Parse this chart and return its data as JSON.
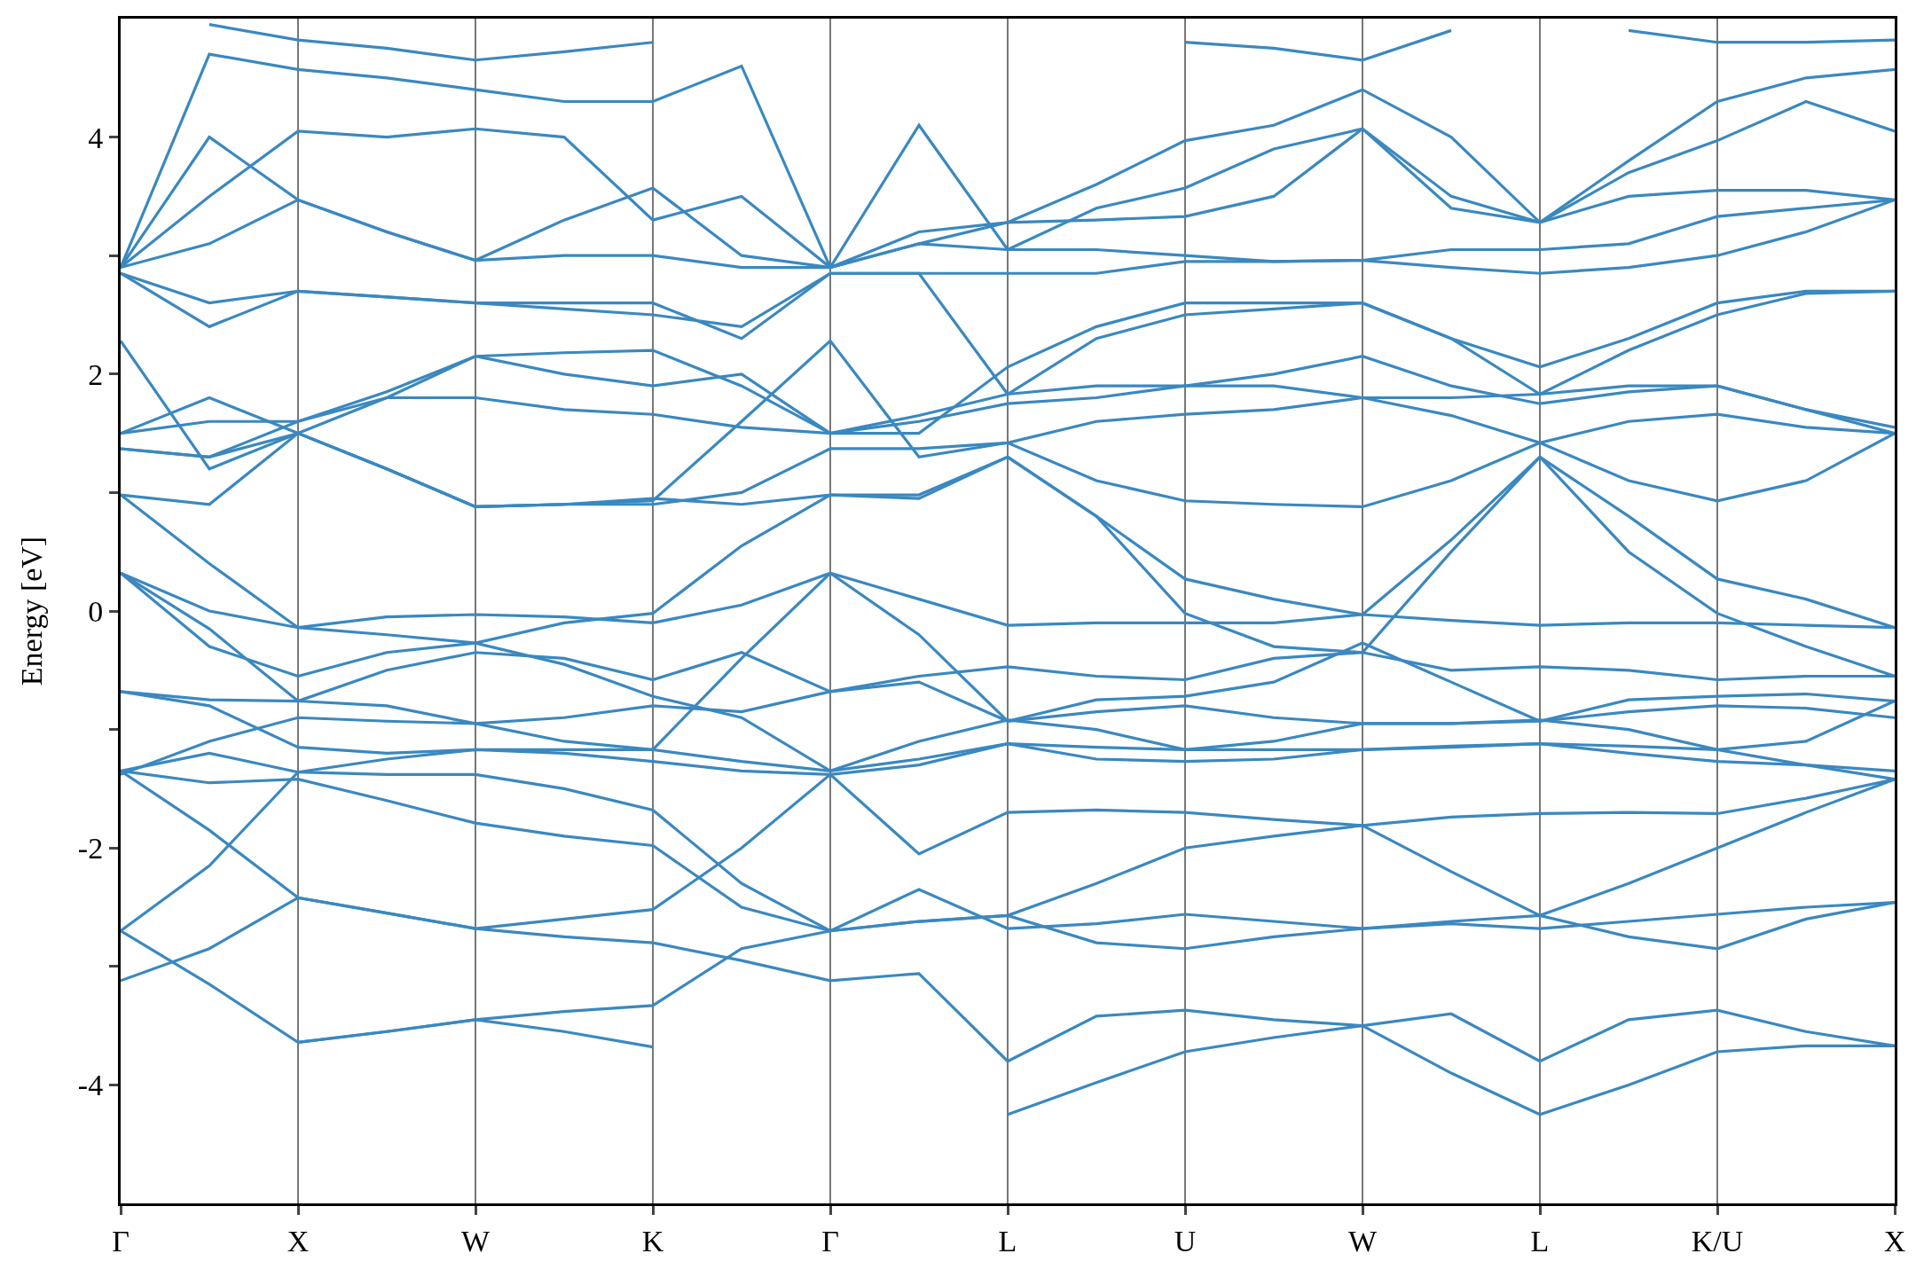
{
  "chart_data": {
    "type": "line",
    "ylabel": "Energy [eV]",
    "color": "#3a88c0",
    "grid": "x",
    "marker": "none",
    "line_style": "solid",
    "categories": [
      "Γ",
      null,
      "X",
      null,
      "W",
      null,
      "K",
      null,
      "Γ",
      null,
      "L",
      null,
      "U",
      null,
      "W",
      null,
      "L",
      null,
      "K/U",
      null,
      "X"
    ],
    "ylim": [
      -5,
      5
    ],
    "yticks": [
      -4,
      {
        "value": -3,
        "label": null
      },
      -2,
      {
        "value": -1,
        "label": null
      },
      0,
      {
        "value": 1,
        "label": null
      },
      2,
      {
        "value": 3,
        "label": null
      },
      4
    ],
    "series": [
      {
        "values": [
          null,
          null,
          -3.64,
          -3.55,
          -3.45,
          -3.55,
          -3.68,
          null,
          null,
          null,
          -4.25,
          -3.98,
          -3.72,
          -3.6,
          -3.5,
          -3.9,
          -4.25,
          -4.0,
          -3.72,
          -3.67,
          -3.67
        ]
      },
      {
        "values": [
          -2.7,
          -3.15,
          -3.64,
          -3.55,
          -3.45,
          -3.38,
          -3.33,
          -2.85,
          -2.7,
          -2.35,
          -2.68,
          -2.64,
          -2.56,
          -2.62,
          -2.68,
          -2.64,
          -2.68,
          -2.62,
          -2.56,
          -2.5,
          -2.46
        ]
      },
      {
        "values": [
          -3.12,
          -2.85,
          -2.42,
          -2.55,
          -2.68,
          -2.75,
          -2.8,
          -2.95,
          -3.12,
          -3.06,
          -3.8,
          -3.42,
          -3.37,
          -3.45,
          -3.5,
          -3.4,
          -3.8,
          -3.45,
          -3.37,
          -3.55,
          -3.67
        ]
      },
      {
        "values": [
          -1.35,
          -1.85,
          -2.42,
          -2.55,
          -2.68,
          -2.6,
          -2.52,
          -2.0,
          -1.38,
          -2.05,
          -1.7,
          -1.68,
          -1.7,
          -1.76,
          -1.81,
          -1.74,
          -1.71,
          -1.7,
          -1.71,
          -1.58,
          -1.42
        ]
      },
      {
        "values": [
          -2.7,
          -2.15,
          -1.36,
          -1.25,
          -1.17,
          -1.17,
          -1.17,
          -1.27,
          -1.35,
          -1.25,
          -1.12,
          -1.15,
          -1.17,
          -1.17,
          -1.17,
          -1.14,
          -1.12,
          -1.14,
          -1.17,
          -1.3,
          -1.42
        ]
      },
      {
        "values": [
          -1.35,
          -1.45,
          -1.42,
          -1.6,
          -1.79,
          -1.9,
          -1.98,
          -2.5,
          -2.7,
          -2.62,
          -2.57,
          -2.8,
          -2.85,
          -2.75,
          -2.68,
          -2.62,
          -2.57,
          -2.75,
          -2.85,
          -2.6,
          -2.46
        ]
      },
      {
        "values": [
          -1.35,
          -1.2,
          -1.36,
          -1.38,
          -1.38,
          -1.5,
          -1.68,
          -2.3,
          -2.7,
          -2.62,
          -2.57,
          -2.3,
          -2.0,
          -1.9,
          -1.81,
          -2.2,
          -2.57,
          -2.3,
          -2.0,
          -1.7,
          -1.42
        ]
      },
      {
        "values": [
          -1.38,
          -1.1,
          -0.9,
          -0.93,
          -0.95,
          -0.9,
          -0.8,
          -0.85,
          -0.68,
          -0.6,
          -0.93,
          -0.85,
          -0.8,
          -0.9,
          -0.95,
          -0.95,
          -0.93,
          -0.85,
          -0.8,
          -0.82,
          -0.9
        ]
      },
      {
        "values": [
          -0.68,
          -0.75,
          -0.76,
          -0.5,
          -0.35,
          -0.4,
          -0.58,
          -0.35,
          -0.68,
          -0.55,
          -0.47,
          -0.55,
          -0.58,
          -0.4,
          -0.35,
          -0.5,
          -0.47,
          -0.5,
          -0.58,
          -0.55,
          -0.55
        ]
      },
      {
        "values": [
          -0.68,
          -0.8,
          -1.15,
          -1.2,
          -1.17,
          -1.2,
          -1.27,
          -1.35,
          -1.38,
          -1.3,
          -1.12,
          -1.25,
          -1.27,
          -1.25,
          -1.17,
          -1.15,
          -1.12,
          -1.2,
          -1.27,
          -1.3,
          -1.35
        ]
      },
      {
        "values": [
          0.32,
          -0.3,
          -0.55,
          -0.35,
          -0.27,
          -0.45,
          -0.72,
          -0.9,
          -1.35,
          -1.1,
          -0.92,
          -1.0,
          -1.17,
          -1.1,
          -0.95,
          -0.95,
          -0.92,
          -1.0,
          -1.17,
          -1.1,
          -0.76
        ]
      },
      {
        "values": [
          0.32,
          -0.15,
          -0.76,
          -0.8,
          -0.95,
          -1.1,
          -1.17,
          -0.4,
          0.32,
          -0.2,
          -0.93,
          -0.75,
          -0.72,
          -0.6,
          -0.27,
          -0.6,
          -0.93,
          -0.75,
          -0.72,
          -0.7,
          -0.76
        ]
      },
      {
        "values": [
          0.32,
          0.0,
          -0.14,
          -0.05,
          -0.03,
          -0.05,
          -0.1,
          0.05,
          0.32,
          0.1,
          -0.12,
          -0.1,
          -0.1,
          -0.1,
          -0.03,
          -0.08,
          -0.12,
          -0.1,
          -0.1,
          -0.12,
          -0.14
        ]
      },
      {
        "values": [
          0.98,
          0.4,
          -0.14,
          -0.2,
          -0.27,
          -0.1,
          -0.02,
          0.55,
          0.98,
          0.98,
          1.3,
          0.8,
          0.27,
          0.1,
          -0.03,
          0.6,
          1.3,
          0.8,
          0.27,
          0.1,
          -0.14
        ]
      },
      {
        "values": [
          0.98,
          0.9,
          1.5,
          1.2,
          0.88,
          0.9,
          0.95,
          0.9,
          0.98,
          0.95,
          1.3,
          0.8,
          -0.02,
          -0.3,
          -0.35,
          0.5,
          1.3,
          0.5,
          -0.02,
          -0.3,
          -0.55
        ]
      },
      {
        "values": [
          2.28,
          1.2,
          1.5,
          1.2,
          0.88,
          0.9,
          0.93,
          1.6,
          2.28,
          1.3,
          1.42,
          1.1,
          0.93,
          0.9,
          0.88,
          1.1,
          1.42,
          1.1,
          0.93,
          1.1,
          1.5
        ]
      },
      {
        "values": [
          1.37,
          1.3,
          1.5,
          1.2,
          0.88,
          0.9,
          0.9,
          1.0,
          1.37,
          1.37,
          1.42,
          1.6,
          1.66,
          1.7,
          1.8,
          1.65,
          1.42,
          1.6,
          1.66,
          1.55,
          1.5
        ]
      },
      {
        "values": [
          1.5,
          1.6,
          1.6,
          1.8,
          1.8,
          1.7,
          1.66,
          1.55,
          1.5,
          1.6,
          1.75,
          1.8,
          1.9,
          2.0,
          2.15,
          1.9,
          1.75,
          1.85,
          1.9,
          1.7,
          1.5
        ]
      },
      {
        "values": [
          1.5,
          1.8,
          1.5,
          1.8,
          2.15,
          2.18,
          2.2,
          1.9,
          1.5,
          1.65,
          1.83,
          1.9,
          1.9,
          1.9,
          1.8,
          1.8,
          1.83,
          1.9,
          1.9,
          1.7,
          1.55
        ]
      },
      {
        "values": [
          1.37,
          1.3,
          1.6,
          1.85,
          2.15,
          2.0,
          1.9,
          2.0,
          1.5,
          1.5,
          2.06,
          2.4,
          2.6,
          2.6,
          2.6,
          2.3,
          2.06,
          2.3,
          2.6,
          2.7,
          2.7
        ]
      },
      {
        "values": [
          2.85,
          2.6,
          2.7,
          2.65,
          2.6,
          2.6,
          2.6,
          2.3,
          2.85,
          2.85,
          1.83,
          2.3,
          2.5,
          2.55,
          2.6,
          2.3,
          1.83,
          2.2,
          2.5,
          2.68,
          2.7
        ]
      },
      {
        "values": [
          2.85,
          2.4,
          2.7,
          2.65,
          2.6,
          2.55,
          2.5,
          2.4,
          2.85,
          2.85,
          2.85,
          2.85,
          2.95,
          2.95,
          2.96,
          2.9,
          2.85,
          2.9,
          3.0,
          3.2,
          3.47
        ]
      },
      {
        "values": [
          2.9,
          3.1,
          3.47,
          3.2,
          2.96,
          3.0,
          3.0,
          2.9,
          2.9,
          3.1,
          3.05,
          3.05,
          3.0,
          2.95,
          2.96,
          3.05,
          3.05,
          3.1,
          3.33,
          3.4,
          3.47
        ]
      },
      {
        "values": [
          2.9,
          3.5,
          4.05,
          4.0,
          4.07,
          4.0,
          3.3,
          3.5,
          2.9,
          3.2,
          3.28,
          3.3,
          3.33,
          3.5,
          4.07,
          3.5,
          3.28,
          3.5,
          3.55,
          3.55,
          3.47
        ]
      },
      {
        "values": [
          2.9,
          4.0,
          3.47,
          3.2,
          2.96,
          3.3,
          3.57,
          3.0,
          2.9,
          4.1,
          3.05,
          3.4,
          3.57,
          3.9,
          4.07,
          3.4,
          3.28,
          3.7,
          3.97,
          4.3,
          4.05
        ]
      },
      {
        "values": [
          2.9,
          4.7,
          4.57,
          4.5,
          4.4,
          4.3,
          4.3,
          4.6,
          2.9,
          3.1,
          3.28,
          3.6,
          3.97,
          4.1,
          4.4,
          4.0,
          3.28,
          3.8,
          4.3,
          4.5,
          4.57
        ]
      },
      {
        "values": [
          null,
          4.95,
          4.82,
          4.75,
          4.65,
          4.72,
          4.8,
          null,
          null,
          null,
          null,
          null,
          4.8,
          4.75,
          4.65,
          4.9,
          null,
          4.9,
          4.8,
          4.8,
          4.82
        ]
      }
    ]
  }
}
